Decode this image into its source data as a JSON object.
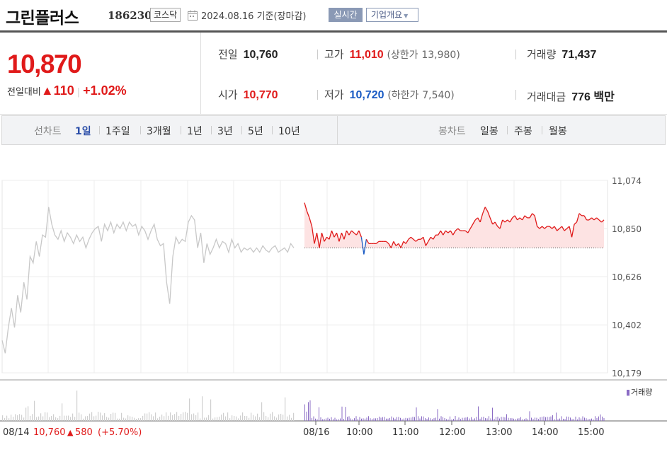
{
  "header": {
    "name": "그린플러스",
    "code": "186230",
    "market": "코스닥",
    "date": "2024.08.16 기준(장마감)",
    "realtime_label": "실시간",
    "company_label": "기업개요"
  },
  "price": {
    "current": "10,870",
    "change_label": "전일대비",
    "change": "110",
    "change_pct": "+1.02%"
  },
  "info": {
    "prev_close": {
      "label": "전일",
      "value": "10,760"
    },
    "high": {
      "label": "고가",
      "value": "11,010",
      "limit_label": "(상한가",
      "limit_value": "13,980)"
    },
    "volume": {
      "label": "거래량",
      "value": "71,437"
    },
    "open": {
      "label": "시가",
      "value": "10,770"
    },
    "low": {
      "label": "저가",
      "value": "10,720",
      "limit_label": "(하한가",
      "limit_value": "7,540)"
    },
    "amount": {
      "label": "거래대금",
      "value": "776 백만"
    }
  },
  "periods": {
    "line_label": "선차트",
    "line_tabs": [
      "1일",
      "1주일",
      "3개월",
      "1년",
      "3년",
      "5년",
      "10년"
    ],
    "active": "1일",
    "candle_label": "봉차트",
    "candle_tabs": [
      "일봉",
      "주봉",
      "월봉"
    ]
  },
  "colors": {
    "up": "#e01a1a",
    "down": "#1a5bc4",
    "prev_day_line": "#c8c8c8"
  },
  "chart_data": {
    "type": "line",
    "y_ticks": [
      "11,074",
      "10,850",
      "10,626",
      "10,402",
      "10,179"
    ],
    "ylim": [
      10179,
      11074
    ],
    "baseline": 10760,
    "x_ticks": [
      "08/16",
      "10:00",
      "11:00",
      "12:00",
      "13:00",
      "14:00",
      "15:00"
    ],
    "prev_day": {
      "date": "08/14",
      "close": "10,760",
      "change": "580",
      "change_pct": "(+5.70%)",
      "values": [
        10330,
        10270,
        10390,
        10480,
        10390,
        10540,
        10460,
        10600,
        10520,
        10720,
        10690,
        10790,
        10720,
        10820,
        10810,
        10950,
        10870,
        10820,
        10800,
        10840,
        10790,
        10830,
        10810,
        10780,
        10820,
        10790,
        10810,
        10760,
        10800,
        10830,
        10850,
        10860,
        10790,
        10870,
        10840,
        10880,
        10830,
        10870,
        10850,
        10880,
        10840,
        10880,
        10860,
        10870,
        10820,
        10860,
        10840,
        10800,
        10840,
        10870,
        10800,
        10770,
        10780,
        10600,
        10500,
        10720,
        10810,
        10780,
        10800,
        10790,
        10880,
        10910,
        10890,
        10760,
        10830,
        10690,
        10780,
        10730,
        10760,
        10800,
        10760,
        10790,
        10780,
        10740,
        10800,
        10760,
        10780,
        10740,
        10760,
        10750,
        10760,
        10740,
        10760,
        10740,
        10770,
        10750,
        10740,
        10760,
        10770,
        10740,
        10750,
        10760,
        10740,
        10780,
        10760
      ]
    },
    "intraday": {
      "values": [
        10970,
        10930,
        10900,
        10860,
        10780,
        10830,
        10760,
        10830,
        10790,
        10810,
        10800,
        10840,
        10810,
        10830,
        10790,
        10830,
        10800,
        10840,
        10820,
        10840,
        10830,
        10820,
        10840,
        10810,
        10730,
        10800,
        10780,
        10780,
        10780,
        10780,
        10790,
        10790,
        10790,
        10790,
        10780,
        10760,
        10790,
        10770,
        10780,
        10760,
        10790,
        10780,
        10800,
        10810,
        10800,
        10790,
        10800,
        10800,
        10810,
        10770,
        10790,
        10810,
        10800,
        10820,
        10820,
        10840,
        10820,
        10840,
        10830,
        10840,
        10820,
        10840,
        10850,
        10840,
        10840,
        10840,
        10830,
        10850,
        10870,
        10890,
        10900,
        10880,
        10920,
        10950,
        10930,
        10900,
        10870,
        10880,
        10860,
        10850,
        10890,
        10880,
        10890,
        10880,
        10900,
        10910,
        10890,
        10900,
        10890,
        10910,
        10900,
        10900,
        10920,
        10910,
        10860,
        10850,
        10860,
        10850,
        10860,
        10860,
        10850,
        10860,
        10840,
        10850,
        10860,
        10840,
        10850,
        10860,
        10810,
        10870,
        10880,
        10920,
        10910,
        10910,
        10890,
        10890,
        10900,
        10890,
        10900,
        10890,
        10880,
        10890
      ]
    },
    "legend_volume": "거래량"
  }
}
